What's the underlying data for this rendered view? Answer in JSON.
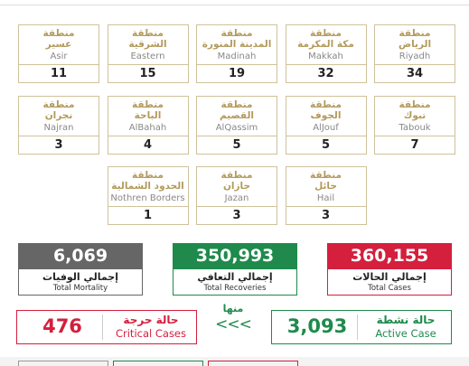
{
  "regions": [
    {
      "ar_prefix": "منطقة",
      "ar_name": "الرياض",
      "en_name": "Riyadh",
      "count": "34"
    },
    {
      "ar_prefix": "منطقة",
      "ar_name": "مكة المكرمة",
      "en_name": "Makkah",
      "count": "32"
    },
    {
      "ar_prefix": "منطقة",
      "ar_name": "المدينة المنورة",
      "en_name": "Madinah",
      "count": "19"
    },
    {
      "ar_prefix": "منطقة",
      "ar_name": "الشرقية",
      "en_name": "Eastern",
      "count": "15"
    },
    {
      "ar_prefix": "منطقة",
      "ar_name": "عسير",
      "en_name": "Asir",
      "count": "11"
    },
    {
      "ar_prefix": "منطقة",
      "ar_name": "تبوك",
      "en_name": "Tabouk",
      "count": "7"
    },
    {
      "ar_prefix": "منطقة",
      "ar_name": "الجوف",
      "en_name": "AlJouf",
      "count": "5"
    },
    {
      "ar_prefix": "منطقة",
      "ar_name": "القصيم",
      "en_name": "AlQassim",
      "count": "5"
    },
    {
      "ar_prefix": "منطقة",
      "ar_name": "الباحة",
      "en_name": "AlBahah",
      "count": "4"
    },
    {
      "ar_prefix": "منطقة",
      "ar_name": "نجران",
      "en_name": "Najran",
      "count": "3"
    },
    {
      "ar_prefix": "منطقة",
      "ar_name": "حائل",
      "en_name": "Hail",
      "count": "3"
    },
    {
      "ar_prefix": "منطقة",
      "ar_name": "جازان",
      "en_name": "Jazan",
      "count": "3"
    },
    {
      "ar_prefix": "منطقة",
      "ar_name": "الحدود الشمالية",
      "en_name": "Nothren Borders",
      "count": "1"
    }
  ],
  "totals": [
    {
      "value": "360,155",
      "ar": "إجمالي الحالات",
      "en": "Total Cases"
    },
    {
      "value": "350,993",
      "ar": "إجمالي التعافي",
      "en": "Total Recoveries"
    },
    {
      "value": "6,069",
      "ar": "إجمالي الوفيات",
      "en": "Total Mortality"
    }
  ],
  "active": {
    "value": "3,093",
    "ar": "حالة نشطة",
    "en": "Active Case"
  },
  "connector": {
    "label": "منها",
    "arrows": "<<<"
  },
  "critical": {
    "value": "476",
    "ar": "حالة حرجة",
    "en": "Critical Cases"
  }
}
